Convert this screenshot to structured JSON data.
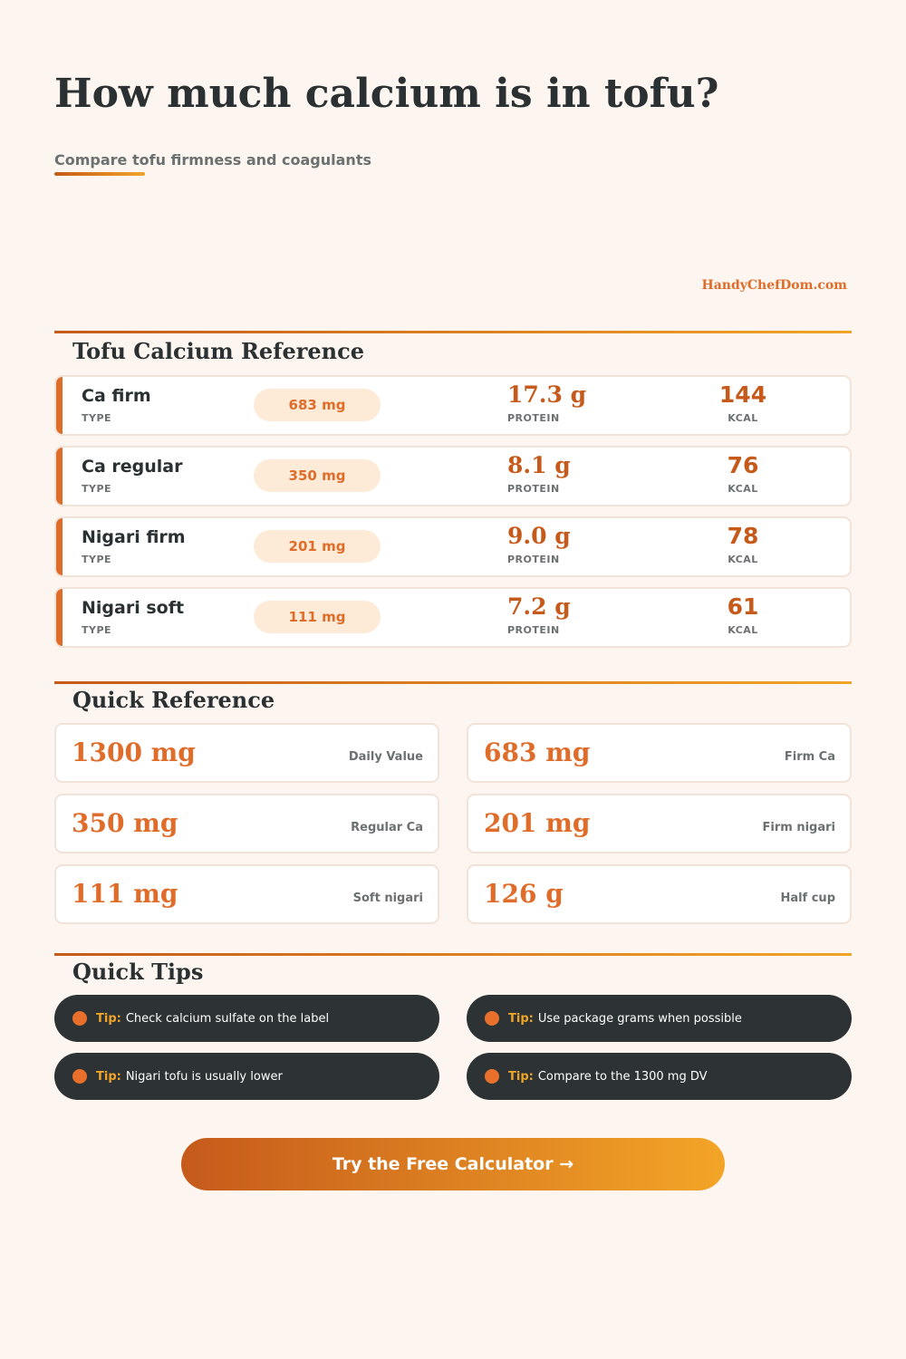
{
  "header": {
    "title": "How much calcium is in tofu?",
    "subtitle": "Compare tofu firmness and coagulants",
    "brand": "HandyChefDom.com"
  },
  "reference": {
    "heading": "Tofu Calcium Reference",
    "type_label": "TYPE",
    "protein_label": "PROTEIN",
    "kcal_label": "KCAL",
    "rows": [
      {
        "name": "Ca firm",
        "calcium": "683 mg",
        "protein": "17.3 g",
        "kcal": "144"
      },
      {
        "name": "Ca regular",
        "calcium": "350 mg",
        "protein": "8.1 g",
        "kcal": "76"
      },
      {
        "name": "Nigari firm",
        "calcium": "201 mg",
        "protein": "9.0 g",
        "kcal": "78"
      },
      {
        "name": "Nigari soft",
        "calcium": "111 mg",
        "protein": "7.2 g",
        "kcal": "61"
      }
    ]
  },
  "quick_reference": {
    "heading": "Quick Reference",
    "cards": [
      {
        "value": "1300 mg",
        "label": "Daily Value"
      },
      {
        "value": "683 mg",
        "label": "Firm Ca"
      },
      {
        "value": "350 mg",
        "label": "Regular Ca"
      },
      {
        "value": "201 mg",
        "label": "Firm nigari"
      },
      {
        "value": "111 mg",
        "label": "Soft nigari"
      },
      {
        "value": "126 g",
        "label": "Half cup"
      }
    ]
  },
  "tips": {
    "heading": "Quick Tips",
    "tip_label": "Tip:",
    "items": [
      "Check calcium sulfate on the label",
      "Use package grams when possible",
      "Nigari tofu is usually lower",
      "Compare to the 1300 mg DV"
    ]
  },
  "cta": {
    "label": "Try the Free Calculator →"
  },
  "colors": {
    "background": "#fdf6f0",
    "accent": "#e06c2a",
    "accent_dark": "#c55a1b",
    "accent_light": "#f0a428",
    "dark": "#2d3335"
  }
}
